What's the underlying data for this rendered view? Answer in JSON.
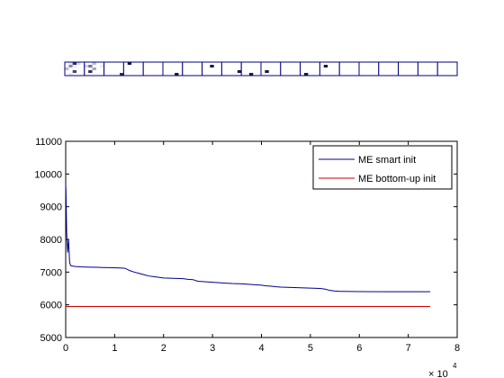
{
  "filter_strip": {
    "cell_count": 20,
    "border_color": "#000080",
    "cells": [
      [
        0.0,
        0.1,
        0.9,
        0.2,
        0.0,
        0.0,
        0.5,
        0.1,
        0.0,
        0.0,
        0.3,
        0.0,
        0.0,
        0.0,
        0.0,
        0.0,
        0.0,
        0.8,
        0.0,
        0.0,
        0.0,
        0.1,
        0.0,
        0.0,
        0.0
      ],
      [
        0.0,
        0.0,
        0.3,
        0.0,
        0.0,
        0.2,
        0.6,
        0.0,
        0.0,
        0.1,
        0.0,
        0.0,
        0.4,
        0.0,
        0.0,
        0.0,
        0.9,
        0.0,
        0.0,
        0.0,
        0.0,
        0.0,
        0.0,
        0.0,
        0.0
      ],
      [
        0.0,
        0.0,
        0.0,
        0.0,
        0.0,
        0.0,
        0.0,
        0.0,
        0.0,
        0.0,
        0.0,
        0.0,
        0.0,
        0.0,
        0.0,
        0.0,
        0.0,
        0.0,
        0.0,
        0.0,
        0.0,
        0.0,
        0.0,
        0.0,
        0.9
      ],
      [
        0.0,
        1.0,
        0.0,
        0.0,
        0.0,
        0.0,
        0.0,
        0.0,
        0.0,
        0.0,
        0.0,
        0.0,
        0.0,
        0.0,
        0.0,
        0.0,
        0.0,
        0.0,
        0.0,
        0.0,
        0.0,
        0.0,
        0.0,
        0.0,
        0.0
      ],
      [
        0.0,
        0.0,
        0.0,
        0.0,
        0.0,
        0.0,
        0.0,
        0.0,
        0.0,
        0.0,
        0.0,
        0.0,
        0.0,
        0.0,
        0.0,
        0.0,
        0.0,
        0.0,
        0.0,
        0.0,
        0.0,
        0.0,
        0.0,
        0.0,
        0.0
      ],
      [
        0.0,
        0.0,
        0.0,
        0.0,
        0.0,
        0.0,
        0.0,
        0.0,
        0.0,
        0.0,
        0.0,
        0.0,
        0.0,
        0.0,
        0.0,
        0.0,
        0.0,
        0.0,
        0.0,
        0.0,
        0.0,
        0.0,
        0.0,
        1.0,
        0.0
      ],
      [
        0.0,
        0.0,
        0.0,
        0.0,
        0.0,
        0.0,
        0.0,
        0.0,
        0.0,
        0.0,
        0.0,
        0.0,
        0.0,
        0.0,
        0.0,
        0.0,
        0.0,
        0.0,
        0.0,
        0.0,
        0.0,
        0.0,
        0.0,
        0.0,
        0.0
      ],
      [
        0.0,
        0.0,
        0.0,
        0.0,
        0.0,
        0.0,
        0.0,
        1.0,
        0.0,
        0.0,
        0.0,
        0.0,
        0.0,
        0.0,
        0.0,
        0.0,
        0.0,
        0.0,
        0.0,
        0.0,
        0.0,
        0.0,
        0.0,
        0.0,
        0.0
      ],
      [
        0.0,
        0.0,
        0.0,
        0.0,
        0.0,
        0.0,
        0.0,
        0.0,
        0.0,
        0.0,
        0.0,
        0.0,
        0.0,
        0.0,
        0.0,
        0.0,
        0.0,
        0.0,
        0.0,
        1.0,
        0.0,
        0.0,
        0.0,
        0.0,
        0.0
      ],
      [
        0.0,
        0.0,
        0.0,
        0.0,
        0.0,
        0.0,
        0.0,
        0.0,
        0.0,
        0.0,
        0.0,
        0.0,
        0.0,
        0.0,
        0.0,
        0.0,
        0.0,
        0.0,
        0.0,
        0.0,
        0.0,
        0.0,
        1.0,
        0.0,
        0.0
      ],
      [
        0.0,
        0.0,
        0.0,
        0.0,
        0.0,
        0.0,
        0.0,
        0.0,
        0.0,
        0.0,
        0.0,
        0.0,
        0.0,
        0.0,
        0.0,
        0.0,
        1.0,
        0.0,
        0.0,
        0.0,
        0.0,
        0.0,
        0.0,
        0.0,
        0.0
      ],
      [
        0.0,
        0.0,
        0.0,
        0.0,
        0.0,
        0.0,
        0.0,
        0.0,
        0.0,
        0.0,
        0.0,
        0.0,
        0.0,
        0.0,
        0.0,
        0.0,
        0.0,
        0.0,
        0.0,
        0.0,
        0.0,
        0.0,
        0.0,
        0.0,
        0.0
      ],
      [
        0.0,
        0.0,
        0.0,
        0.0,
        0.0,
        0.0,
        0.0,
        0.0,
        0.0,
        0.0,
        0.0,
        0.0,
        0.0,
        0.0,
        0.0,
        0.0,
        0.0,
        0.0,
        0.0,
        0.0,
        0.0,
        1.0,
        0.0,
        0.0,
        0.0
      ],
      [
        0.0,
        0.0,
        0.0,
        0.0,
        0.0,
        0.0,
        1.0,
        0.0,
        0.0,
        0.0,
        0.0,
        0.0,
        0.0,
        0.0,
        0.0,
        0.0,
        0.0,
        0.0,
        0.0,
        0.0,
        0.0,
        0.0,
        0.0,
        0.0,
        0.0
      ],
      [
        0.0,
        0.0,
        0.0,
        0.0,
        0.0,
        0.0,
        0.0,
        0.0,
        0.0,
        0.0,
        0.0,
        0.0,
        0.0,
        0.0,
        0.0,
        0.0,
        0.0,
        0.0,
        0.0,
        0.0,
        0.0,
        0.0,
        0.0,
        0.0,
        0.0
      ],
      [
        0.0,
        0.0,
        0.0,
        0.0,
        0.0,
        0.0,
        0.0,
        0.0,
        0.0,
        0.0,
        0.0,
        0.0,
        0.0,
        0.0,
        0.0,
        0.0,
        0.0,
        0.0,
        0.0,
        0.0,
        0.0,
        0.0,
        0.0,
        0.0,
        0.0
      ],
      [
        0.0,
        0.0,
        0.0,
        0.0,
        0.0,
        0.0,
        0.0,
        0.0,
        0.0,
        0.0,
        0.0,
        0.0,
        0.0,
        0.0,
        0.0,
        0.0,
        0.0,
        0.0,
        0.0,
        0.0,
        0.0,
        0.0,
        0.0,
        0.0,
        0.0
      ],
      [
        0.0,
        0.0,
        0.0,
        0.0,
        0.0,
        0.0,
        0.0,
        0.0,
        0.0,
        0.0,
        0.0,
        0.0,
        0.0,
        0.0,
        0.0,
        0.0,
        0.0,
        0.0,
        0.0,
        0.0,
        0.0,
        0.0,
        0.0,
        0.0,
        0.0
      ],
      [
        0.0,
        0.0,
        0.0,
        0.0,
        0.0,
        0.0,
        0.0,
        0.0,
        0.0,
        0.0,
        0.0,
        0.0,
        0.0,
        0.0,
        0.0,
        0.0,
        0.0,
        0.0,
        0.0,
        0.0,
        0.0,
        0.0,
        0.0,
        0.0,
        0.0
      ],
      [
        0.0,
        0.0,
        0.0,
        0.0,
        0.0,
        0.0,
        0.0,
        0.0,
        0.0,
        0.0,
        0.0,
        0.0,
        0.0,
        0.0,
        0.0,
        0.0,
        0.0,
        0.0,
        0.0,
        0.0,
        0.0,
        0.0,
        0.0,
        0.0,
        0.0
      ]
    ]
  },
  "chart_data": {
    "type": "line",
    "title": "",
    "xlabel": "",
    "ylabel": "",
    "x_multiplier_label": "× 10",
    "x_multiplier_exponent": "4",
    "xlim": [
      0,
      80000
    ],
    "ylim": [
      5000,
      11000
    ],
    "x_ticks": [
      0,
      10000,
      20000,
      30000,
      40000,
      50000,
      60000,
      70000,
      80000
    ],
    "x_tick_labels": [
      "0",
      "1",
      "2",
      "3",
      "4",
      "5",
      "6",
      "7",
      "8"
    ],
    "y_ticks": [
      5000,
      6000,
      7000,
      8000,
      9000,
      10000,
      11000
    ],
    "y_tick_labels": [
      "5000",
      "6000",
      "7000",
      "8000",
      "9000",
      "10000",
      "11000"
    ],
    "grid": false,
    "legend_position": "top-right",
    "series": [
      {
        "name": "ME smart init",
        "color": "#00008b",
        "x": [
          0,
          50,
          200,
          400,
          600,
          800,
          1000,
          1500,
          2000,
          3000,
          5000,
          6500,
          7500,
          9000,
          10500,
          12000,
          12500,
          13000,
          14000,
          15000,
          16000,
          17000,
          18000,
          19000,
          20000,
          22000,
          24000,
          25000,
          26000,
          27000,
          28000,
          29000,
          30000,
          31000,
          32000,
          34000,
          36000,
          38000,
          39000,
          40000,
          41000,
          42000,
          43000,
          44000,
          46000,
          48000,
          50000,
          52000,
          53000,
          54000,
          55000,
          56000,
          60000,
          65000,
          70000,
          74500
        ],
        "y": [
          9700,
          9500,
          8200,
          7600,
          8000,
          7300,
          7200,
          7180,
          7170,
          7160,
          7150,
          7145,
          7140,
          7135,
          7130,
          7120,
          7090,
          7050,
          7000,
          6960,
          6920,
          6880,
          6860,
          6840,
          6820,
          6810,
          6800,
          6780,
          6770,
          6720,
          6710,
          6700,
          6690,
          6680,
          6670,
          6650,
          6640,
          6620,
          6610,
          6600,
          6580,
          6570,
          6550,
          6540,
          6530,
          6520,
          6510,
          6500,
          6480,
          6440,
          6420,
          6410,
          6405,
          6400,
          6400,
          6400
        ]
      },
      {
        "name": "ME bottom-up init",
        "color": "#cc0000",
        "x": [
          0,
          74500
        ],
        "y": [
          5950,
          5950
        ]
      }
    ]
  }
}
